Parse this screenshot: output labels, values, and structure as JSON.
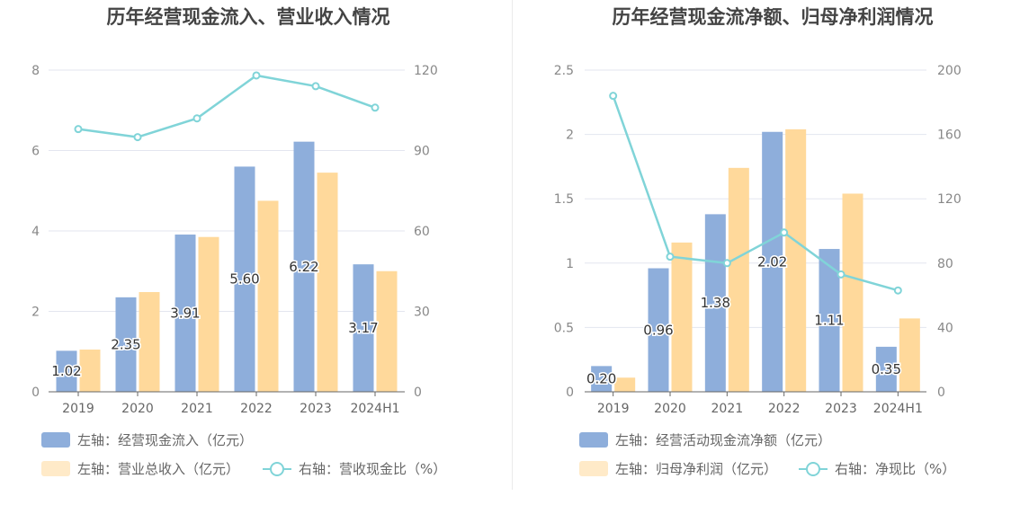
{
  "chart_data": [
    {
      "type": "bar",
      "title": "历年经营现金流入、营业收入情况",
      "categories": [
        "2019",
        "2020",
        "2021",
        "2022",
        "2023",
        "2024H1"
      ],
      "left_axis": {
        "ticks": [
          "0",
          "2",
          "4",
          "6",
          "8"
        ],
        "ylim": [
          0,
          8
        ]
      },
      "right_axis": {
        "ticks": [
          "0",
          "30",
          "60",
          "90",
          "120"
        ],
        "ylim": [
          0,
          120
        ]
      },
      "grid": true,
      "legend_position": "bottom-left",
      "series": [
        {
          "name": "左轴：经营现金流入（亿元）",
          "type": "bar",
          "axis": "left",
          "color": "#8eaedb",
          "values": [
            1.02,
            2.35,
            3.91,
            5.6,
            6.22,
            3.17
          ],
          "labels": [
            "1.02",
            "2.35",
            "3.91",
            "5.60",
            "6.22",
            "3.17"
          ]
        },
        {
          "name": "左轴：营业总收入（亿元）",
          "type": "bar",
          "axis": "left",
          "color": "#ffd99b",
          "values": [
            1.05,
            2.48,
            3.85,
            4.75,
            5.45,
            3.0
          ]
        },
        {
          "name": "右轴：营收现金比（%）",
          "type": "line",
          "axis": "right",
          "color": "#80d4d8",
          "values": [
            98,
            95,
            102,
            118,
            114,
            106
          ]
        }
      ]
    },
    {
      "type": "bar",
      "title": "历年经营现金流净额、归母净利润情况",
      "categories": [
        "2019",
        "2020",
        "2021",
        "2022",
        "2023",
        "2024H1"
      ],
      "left_axis": {
        "ticks": [
          "0",
          "0.5",
          "1",
          "1.5",
          "2",
          "2.5"
        ],
        "ylim": [
          0,
          2.5
        ]
      },
      "right_axis": {
        "ticks": [
          "0",
          "40",
          "80",
          "120",
          "160",
          "200"
        ],
        "ylim": [
          0,
          200
        ]
      },
      "grid": true,
      "legend_position": "bottom-left",
      "series": [
        {
          "name": "左轴：经营活动现金流净额（亿元）",
          "type": "bar",
          "axis": "left",
          "color": "#8eaedb",
          "values": [
            0.2,
            0.96,
            1.38,
            2.02,
            1.11,
            0.35
          ],
          "labels": [
            "0.20",
            "0.96",
            "1.38",
            "2.02",
            "1.11",
            "0.35"
          ]
        },
        {
          "name": "左轴：归母净利润（亿元）",
          "type": "bar",
          "axis": "left",
          "color": "#ffd99b",
          "values": [
            0.11,
            1.16,
            1.74,
            2.04,
            1.54,
            0.57
          ]
        },
        {
          "name": "右轴：净现比（%）",
          "type": "line",
          "axis": "right",
          "color": "#80d4d8",
          "values": [
            184,
            84,
            80,
            99,
            73,
            63
          ]
        }
      ]
    }
  ]
}
